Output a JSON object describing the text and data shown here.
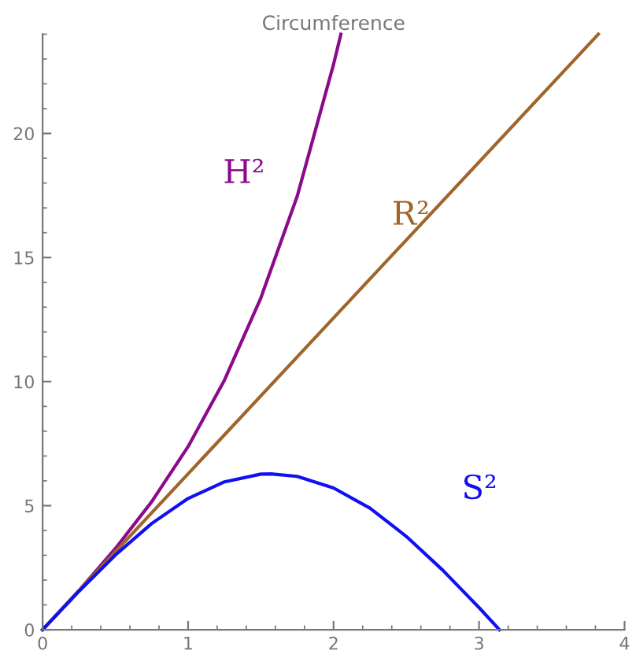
{
  "chart_data": {
    "type": "line",
    "title": "Circumference",
    "xlim": [
      0,
      4
    ],
    "ylim": [
      0,
      24
    ],
    "xticks": [
      0,
      1,
      2,
      3,
      4
    ],
    "yticks": [
      0,
      5,
      10,
      15,
      20
    ],
    "grid": false,
    "legend": false,
    "marker": "none",
    "line_style": "solid",
    "series": [
      {
        "name": "H²",
        "color": "#8b0a8b",
        "x": [
          0,
          0.25,
          0.5,
          0.75,
          1.0,
          1.25,
          1.5,
          1.75,
          2.0,
          2.05
        ],
        "values": [
          0,
          1.58,
          3.27,
          5.16,
          7.38,
          10.06,
          13.37,
          17.47,
          22.79,
          24.0
        ]
      },
      {
        "name": "R²",
        "color": "#a0652a",
        "x": [
          0,
          3.82
        ],
        "values": [
          0,
          24.0
        ]
      },
      {
        "name": "S²",
        "color": "#1010f0",
        "x": [
          0,
          0.25,
          0.5,
          0.75,
          1.0,
          1.25,
          1.5,
          1.57,
          1.75,
          2.0,
          2.25,
          2.5,
          2.75,
          3.0,
          3.14
        ],
        "values": [
          0,
          1.55,
          3.01,
          4.28,
          5.29,
          5.96,
          6.27,
          6.28,
          6.18,
          5.71,
          4.9,
          3.76,
          2.4,
          0.89,
          0
        ]
      }
    ]
  }
}
